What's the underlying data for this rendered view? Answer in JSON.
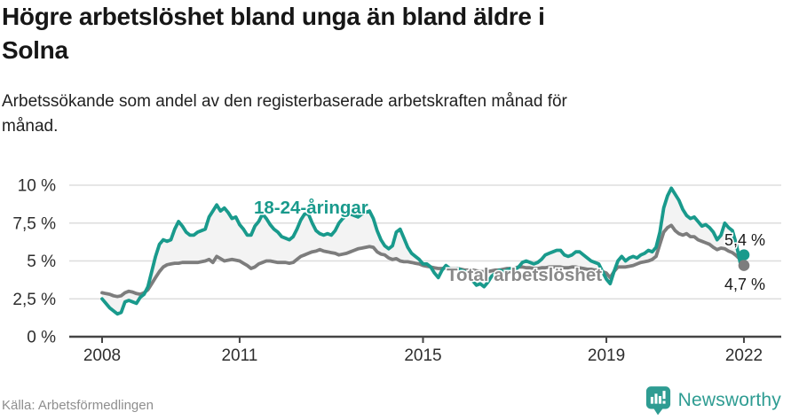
{
  "header": {
    "title_lines": [
      "Högre arbetslöshet bland unga än bland äldre i",
      "Solna"
    ],
    "subtitle_lines": [
      "Arbetssökande som andel av den registerbaserade arbetskraften månad för",
      "månad."
    ]
  },
  "footer": {
    "source": "Källa: Arbetsförmedlingen",
    "brand": "Newsworthy"
  },
  "chart_data": {
    "type": "line",
    "title": "Högre arbetslöshet bland unga än bland äldre i Solna",
    "subtitle": "Arbetssökande som andel av den registerbaserade arbetskraften månad för månad.",
    "unit": "%",
    "ylim": [
      0,
      10
    ],
    "grid": true,
    "legend_position": "inline-labels",
    "y_ticks": [
      {
        "value": 0,
        "label": "0 %"
      },
      {
        "value": 2.5,
        "label": "2,5 %"
      },
      {
        "value": 5,
        "label": "5 %"
      },
      {
        "value": 7.5,
        "label": "7,5 %"
      },
      {
        "value": 10,
        "label": "10 %"
      }
    ],
    "x_ticks": [
      {
        "year": 2008,
        "label": "2008"
      },
      {
        "year": 2011,
        "label": "2011"
      },
      {
        "year": 2015,
        "label": "2015"
      },
      {
        "year": 2019,
        "label": "2019"
      },
      {
        "year": 2022,
        "label": "2022"
      }
    ],
    "colors": {
      "accent_teal": "#199a8c",
      "line_gray": "#7d7d7d",
      "label_gray": "#8a8a8a",
      "band": "#f3f3f3",
      "grid": "#dddddd",
      "axis": "#454545",
      "tick_label": "#2e2e2e",
      "end_label": "#1a1a1a"
    },
    "series": [
      {
        "name": "18-24-åringar",
        "color": "#199a8c",
        "label_color": "#199a8c",
        "end_label": "5,4 %",
        "start_year": 2008,
        "points_per_year": 12,
        "values": [
          2.5,
          2.2,
          1.9,
          1.7,
          1.5,
          1.6,
          2.3,
          2.4,
          2.3,
          2.2,
          2.6,
          2.8,
          3.3,
          4.3,
          5.3,
          6.1,
          6.4,
          6.3,
          6.4,
          7.1,
          7.6,
          7.3,
          6.9,
          6.7,
          6.7,
          6.9,
          7.0,
          7.1,
          7.9,
          8.3,
          8.7,
          8.3,
          8.5,
          8.2,
          7.8,
          7.9,
          7.4,
          7.1,
          6.7,
          6.7,
          7.3,
          7.6,
          8.1,
          7.8,
          7.4,
          7.1,
          6.9,
          6.6,
          6.5,
          6.4,
          6.6,
          7.1,
          7.7,
          8.1,
          8.1,
          7.5,
          7.0,
          6.8,
          6.7,
          6.8,
          6.7,
          7.0,
          7.5,
          7.8,
          8.0,
          8.1,
          8.0,
          7.9,
          8.1,
          8.2,
          8.3,
          7.8,
          7.0,
          6.4,
          6.0,
          5.8,
          6.0,
          6.9,
          7.1,
          6.5,
          5.9,
          5.5,
          5.3,
          5.1,
          4.8,
          4.8,
          4.6,
          4.2,
          3.9,
          4.4,
          4.7,
          4.5,
          4.4,
          4.5,
          4.4,
          4.3,
          4.1,
          3.7,
          3.4,
          3.5,
          3.3,
          3.6,
          4.0,
          4.2,
          4.4,
          4.3,
          4.4,
          4.5,
          4.4,
          4.6,
          4.9,
          5.0,
          4.9,
          4.8,
          4.9,
          5.1,
          5.4,
          5.5,
          5.6,
          5.7,
          5.7,
          5.4,
          5.3,
          5.4,
          5.6,
          5.6,
          5.4,
          5.2,
          5.0,
          4.9,
          4.8,
          4.3,
          3.8,
          3.5,
          4.3,
          5.0,
          5.3,
          5.0,
          5.2,
          5.3,
          5.2,
          5.4,
          5.5,
          5.7,
          5.6,
          5.9,
          6.9,
          8.5,
          9.3,
          9.8,
          9.4,
          9.0,
          8.4,
          8.0,
          7.8,
          7.9,
          7.6,
          7.3,
          7.4,
          7.2,
          6.9,
          6.4,
          6.7,
          7.5,
          7.2,
          7.0,
          6.1,
          4.9,
          5.4
        ]
      },
      {
        "name": "Total arbetslöshet",
        "color": "#7d7d7d",
        "label_color": "#8a8a8a",
        "end_label": "4,7 %",
        "start_year": 2008,
        "points_per_year": 12,
        "values": [
          2.9,
          2.85,
          2.8,
          2.7,
          2.65,
          2.7,
          2.9,
          3.0,
          2.95,
          2.85,
          2.8,
          2.9,
          3.1,
          3.5,
          3.9,
          4.3,
          4.6,
          4.75,
          4.8,
          4.85,
          4.85,
          4.9,
          4.9,
          4.9,
          4.9,
          4.9,
          4.95,
          5.0,
          5.1,
          4.9,
          5.3,
          5.15,
          5.0,
          5.05,
          5.1,
          5.05,
          5.0,
          4.85,
          4.7,
          4.5,
          4.6,
          4.8,
          4.9,
          5.0,
          5.0,
          4.95,
          4.9,
          4.9,
          4.9,
          4.85,
          4.9,
          5.1,
          5.3,
          5.4,
          5.5,
          5.6,
          5.65,
          5.75,
          5.65,
          5.6,
          5.55,
          5.5,
          5.4,
          5.45,
          5.5,
          5.6,
          5.7,
          5.8,
          5.85,
          5.9,
          5.95,
          5.9,
          5.6,
          5.45,
          5.4,
          5.2,
          5.1,
          5.15,
          5.0,
          4.95,
          4.95,
          4.9,
          4.85,
          4.8,
          4.7,
          4.65,
          4.6,
          4.55,
          4.5,
          4.5,
          4.55,
          4.5,
          4.5,
          4.5,
          4.45,
          4.4,
          4.4,
          4.4,
          4.35,
          4.3,
          4.3,
          4.3,
          4.35,
          4.4,
          4.4,
          4.45,
          4.5,
          4.5,
          4.55,
          4.6,
          4.6,
          4.55,
          4.55,
          4.5,
          4.5,
          4.55,
          4.55,
          4.6,
          4.6,
          4.6,
          4.6,
          4.55,
          4.55,
          4.6,
          4.6,
          4.55,
          4.5,
          4.45,
          4.45,
          4.4,
          4.4,
          4.3,
          4.2,
          3.9,
          4.3,
          4.6,
          4.6,
          4.6,
          4.65,
          4.7,
          4.8,
          4.9,
          4.95,
          5.0,
          5.1,
          5.3,
          6.1,
          6.9,
          7.2,
          7.35,
          7.0,
          6.8,
          6.7,
          6.8,
          6.6,
          6.6,
          6.4,
          6.3,
          6.2,
          6.1,
          5.9,
          5.75,
          5.85,
          5.8,
          5.65,
          5.55,
          5.35,
          5.1,
          4.7
        ]
      }
    ]
  }
}
